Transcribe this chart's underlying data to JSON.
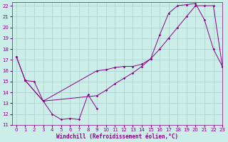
{
  "background_color": "#cceee8",
  "grid_color": "#aacccc",
  "line_color": "#880088",
  "xlim": [
    -0.5,
    23
  ],
  "ylim": [
    11,
    22.3
  ],
  "xticks": [
    0,
    1,
    2,
    3,
    4,
    5,
    6,
    7,
    8,
    9,
    10,
    11,
    12,
    13,
    14,
    15,
    16,
    17,
    18,
    19,
    20,
    21,
    22,
    23
  ],
  "yticks": [
    11,
    12,
    13,
    14,
    15,
    16,
    17,
    18,
    19,
    20,
    21,
    22
  ],
  "xlabel": "Windchill (Refroidissement éolien,°C)",
  "line1_x": [
    0,
    1,
    2,
    3,
    4,
    5,
    6,
    7,
    8,
    9
  ],
  "line1_y": [
    17.3,
    15.1,
    15.0,
    13.2,
    12.0,
    11.5,
    11.6,
    11.5,
    13.8,
    12.5
  ],
  "line2_x": [
    1,
    3,
    9,
    10,
    11,
    12,
    13,
    14,
    15,
    16,
    17,
    18,
    19,
    20,
    21,
    22,
    23
  ],
  "line2_y": [
    15.1,
    13.2,
    16.0,
    16.1,
    16.3,
    16.4,
    16.4,
    16.6,
    17.1,
    19.3,
    21.3,
    22.0,
    22.1,
    22.2,
    20.7,
    18.0,
    16.4
  ],
  "line3_x": [
    0,
    1,
    3,
    9,
    10,
    11,
    12,
    13,
    14,
    15,
    16,
    17,
    18,
    19,
    20,
    21,
    22,
    23
  ],
  "line3_y": [
    17.3,
    15.1,
    13.2,
    13.7,
    14.2,
    14.8,
    15.3,
    15.8,
    16.4,
    17.1,
    18.0,
    19.0,
    20.0,
    21.0,
    22.0,
    22.0,
    22.0,
    16.4
  ],
  "tick_fontsize": 5,
  "xlabel_fontsize": 5.5
}
